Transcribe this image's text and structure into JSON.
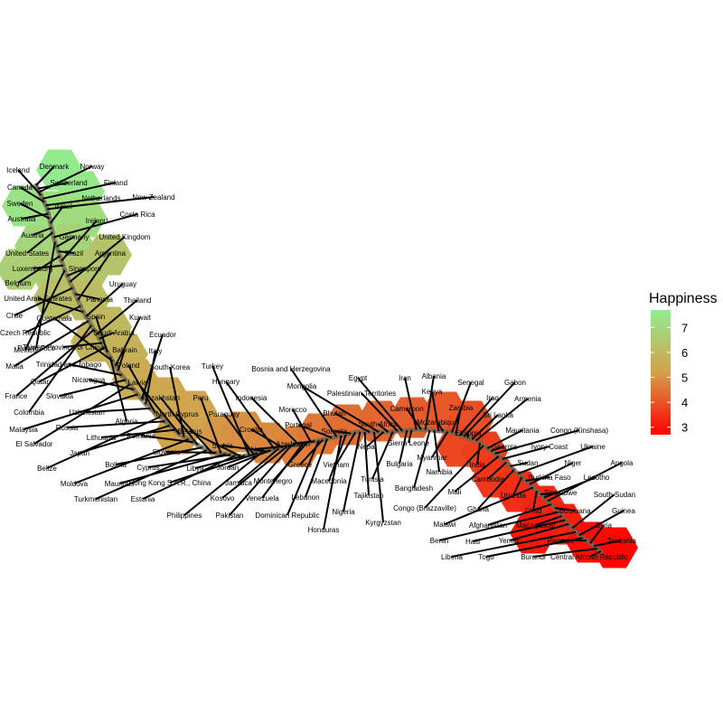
{
  "chart_data": {
    "type": "scatter",
    "title": "",
    "legend": {
      "title": "Happiness",
      "ticks": [
        3,
        4,
        5,
        6,
        7
      ],
      "range": [
        2.7,
        7.7
      ],
      "placement": "right"
    },
    "colors": {
      "low": "#ff0000",
      "mid": "#d4a04a",
      "high": "#90ee90"
    },
    "countries": [
      {
        "name": "Denmark",
        "happiness": 7.53
      },
      {
        "name": "Norway",
        "happiness": 7.5
      },
      {
        "name": "Iceland",
        "happiness": 7.5
      },
      {
        "name": "Switzerland",
        "happiness": 7.51
      },
      {
        "name": "Finland",
        "happiness": 7.41
      },
      {
        "name": "Canada",
        "happiness": 7.4
      },
      {
        "name": "Netherlands",
        "happiness": 7.34
      },
      {
        "name": "New Zealand",
        "happiness": 7.33
      },
      {
        "name": "Australia",
        "happiness": 7.31
      },
      {
        "name": "Sweden",
        "happiness": 7.29
      },
      {
        "name": "Israel",
        "happiness": 7.27
      },
      {
        "name": "Austria",
        "happiness": 7.12
      },
      {
        "name": "United States",
        "happiness": 7.1
      },
      {
        "name": "Costa Rica",
        "happiness": 7.09
      },
      {
        "name": "Puerto Rico",
        "happiness": 7.04
      },
      {
        "name": "Germany",
        "happiness": 6.99
      },
      {
        "name": "Brazil",
        "happiness": 6.95
      },
      {
        "name": "Belgium",
        "happiness": 6.93
      },
      {
        "name": "Ireland",
        "happiness": 6.91
      },
      {
        "name": "Luxembourg",
        "happiness": 6.87
      },
      {
        "name": "Mexico",
        "happiness": 6.78
      },
      {
        "name": "Singapore",
        "happiness": 6.74
      },
      {
        "name": "United Kingdom",
        "happiness": 6.73
      },
      {
        "name": "Chile",
        "happiness": 6.71
      },
      {
        "name": "Panama",
        "happiness": 6.7
      },
      {
        "name": "Argentina",
        "happiness": 6.65
      },
      {
        "name": "Czech Republic",
        "happiness": 6.6
      },
      {
        "name": "United Arab Emirates",
        "happiness": 6.57
      },
      {
        "name": "Uruguay",
        "happiness": 6.55
      },
      {
        "name": "Malta",
        "happiness": 6.49
      },
      {
        "name": "Colombia",
        "happiness": 6.48
      },
      {
        "name": "France",
        "happiness": 6.47
      },
      {
        "name": "Thailand",
        "happiness": 6.47
      },
      {
        "name": "Saudi Arabia",
        "happiness": 6.38
      },
      {
        "name": "Taiwan Province of China",
        "happiness": 6.38
      },
      {
        "name": "Qatar",
        "happiness": 6.37
      },
      {
        "name": "Spain",
        "happiness": 6.36
      },
      {
        "name": "Algeria",
        "happiness": 6.36
      },
      {
        "name": "Guatemala",
        "happiness": 6.32
      },
      {
        "name": "Kuwait",
        "happiness": 6.24
      },
      {
        "name": "Bahrain",
        "happiness": 6.22
      },
      {
        "name": "Trinidad and Tobago",
        "happiness": 6.17
      },
      {
        "name": "Italy",
        "happiness": 5.98
      },
      {
        "name": "Slovakia",
        "happiness": 6.08
      },
      {
        "name": "El Salvador",
        "happiness": 6.07
      },
      {
        "name": "Malaysia",
        "happiness": 6.06
      },
      {
        "name": "Nicaragua",
        "happiness": 6.07
      },
      {
        "name": "Uzbekistan",
        "happiness": 5.97
      },
      {
        "name": "Poland",
        "happiness": 5.97
      },
      {
        "name": "Japan",
        "happiness": 5.92
      },
      {
        "name": "Ecuador",
        "happiness": 6.01
      },
      {
        "name": "Belize",
        "happiness": 5.96
      },
      {
        "name": "South Korea",
        "happiness": 5.84
      },
      {
        "name": "Kazakhstan",
        "happiness": 5.82
      },
      {
        "name": "Moldova",
        "happiness": 5.84
      },
      {
        "name": "Latvia",
        "happiness": 5.85
      },
      {
        "name": "Russia",
        "happiness": 5.96
      },
      {
        "name": "Lithuania",
        "happiness": 5.9
      },
      {
        "name": "Bolivia",
        "happiness": 5.82
      },
      {
        "name": "Romania",
        "happiness": 5.83
      },
      {
        "name": "Turkmenistan",
        "happiness": 5.82
      },
      {
        "name": "Cyprus",
        "happiness": 5.62
      },
      {
        "name": "Mauritius",
        "happiness": 5.63
      },
      {
        "name": "Hong Kong S.A.R., China",
        "happiness": 5.47
      },
      {
        "name": "Estonia",
        "happiness": 5.61
      },
      {
        "name": "North Cyprus",
        "happiness": 5.81
      },
      {
        "name": "Slovenia",
        "happiness": 5.76
      },
      {
        "name": "Belarus",
        "happiness": 5.57
      },
      {
        "name": "Peru",
        "happiness": 5.72
      },
      {
        "name": "Libya",
        "happiness": 5.52
      },
      {
        "name": "Turkey",
        "happiness": 5.5
      },
      {
        "name": "Hungary",
        "happiness": 5.32
      },
      {
        "name": "Paraguay",
        "happiness": 5.49
      },
      {
        "name": "Serbia",
        "happiness": 5.4
      },
      {
        "name": "Jordan",
        "happiness": 5.34
      },
      {
        "name": "Jamaica",
        "happiness": 5.31
      },
      {
        "name": "Philippines",
        "happiness": 5.43
      },
      {
        "name": "Kosovo",
        "happiness": 5.28
      },
      {
        "name": "Pakistan",
        "happiness": 5.27
      },
      {
        "name": "Indonesia",
        "happiness": 5.26
      },
      {
        "name": "Croatia",
        "happiness": 5.29
      },
      {
        "name": "China",
        "happiness": 5.27
      },
      {
        "name": "Venezuela",
        "happiness": 5.25
      },
      {
        "name": "Montenegro",
        "happiness": 5.24
      },
      {
        "name": "Bosnia and Herzegovina",
        "happiness": 5.18
      },
      {
        "name": "Morocco",
        "happiness": 5.23
      },
      {
        "name": "Azerbaijan",
        "happiness": 5.23
      },
      {
        "name": "Mongolia",
        "happiness": 4.96
      },
      {
        "name": "Portugal",
        "happiness": 5.2
      },
      {
        "name": "Dominican Republic",
        "happiness": 5.23
      },
      {
        "name": "Greece",
        "happiness": 5.23
      },
      {
        "name": "Lebanon",
        "happiness": 5.23
      },
      {
        "name": "Vietnam",
        "happiness": 5.07
      },
      {
        "name": "Somalia",
        "happiness": 5.15
      },
      {
        "name": "Honduras",
        "happiness": 5.18
      },
      {
        "name": "Macedonia",
        "happiness": 5.18
      },
      {
        "name": "Bhutan",
        "happiness": 5.01
      },
      {
        "name": "Nigeria",
        "happiness": 5.07
      },
      {
        "name": "Palestinian Territories",
        "happiness": 4.78
      },
      {
        "name": "Tunisia",
        "happiness": 4.81
      },
      {
        "name": "Tajikistan",
        "happiness": 5.04
      },
      {
        "name": "Kyrgyzstan",
        "happiness": 5.0
      },
      {
        "name": "Egypt",
        "happiness": 4.73
      },
      {
        "name": "Nepal",
        "happiness": 4.96
      },
      {
        "name": "South Africa",
        "happiness": 4.83
      },
      {
        "name": "Bulgaria",
        "happiness": 4.71
      },
      {
        "name": "Iran",
        "happiness": 4.69
      },
      {
        "name": "Sierra Leone",
        "happiness": 4.71
      },
      {
        "name": "Cameroon",
        "happiness": 4.69
      },
      {
        "name": "Albania",
        "happiness": 4.64
      },
      {
        "name": "Kenya",
        "happiness": 4.55
      },
      {
        "name": "Bangladesh",
        "happiness": 4.61
      },
      {
        "name": "Mozambique",
        "happiness": 4.55
      },
      {
        "name": "Myanmar",
        "happiness": 4.55
      },
      {
        "name": "Namibia",
        "happiness": 4.57
      },
      {
        "name": "Congo (Brazzaville)",
        "happiness": 4.29
      },
      {
        "name": "Senegal",
        "happiness": 4.54
      },
      {
        "name": "Zambia",
        "happiness": 4.51
      },
      {
        "name": "Gabon",
        "happiness": 4.47
      },
      {
        "name": "Iraq",
        "happiness": 4.5
      },
      {
        "name": "Sri Lanka",
        "happiness": 4.44
      },
      {
        "name": "Armenia",
        "happiness": 4.38
      },
      {
        "name": "Ethiopia",
        "happiness": 4.46
      },
      {
        "name": "India",
        "happiness": 4.32
      },
      {
        "name": "Mauritania",
        "happiness": 4.29
      },
      {
        "name": "Congo (Kinshasa)",
        "happiness": 4.28
      },
      {
        "name": "Georgia",
        "happiness": 4.29
      },
      {
        "name": "Mali",
        "happiness": 4.19
      },
      {
        "name": "Ivory Coast",
        "happiness": 4.18
      },
      {
        "name": "Cambodia",
        "happiness": 4.17
      },
      {
        "name": "Sudan",
        "happiness": 4.14
      },
      {
        "name": "Ghana",
        "happiness": 4.12
      },
      {
        "name": "Ukraine",
        "happiness": 4.1
      },
      {
        "name": "Uganda",
        "happiness": 4.08
      },
      {
        "name": "Burkina Faso",
        "happiness": 4.03
      },
      {
        "name": "Niger",
        "happiness": 4.03
      },
      {
        "name": "Malawi",
        "happiness": 3.97
      },
      {
        "name": "Chad",
        "happiness": 3.94
      },
      {
        "name": "Zimbabwe",
        "happiness": 3.88
      },
      {
        "name": "Lesotho",
        "happiness": 3.81
      },
      {
        "name": "Angola",
        "happiness": 3.8
      },
      {
        "name": "Afghanistan",
        "happiness": 3.79
      },
      {
        "name": "Botswana",
        "happiness": 3.77
      },
      {
        "name": "Benin",
        "happiness": 3.66
      },
      {
        "name": "Madagascar",
        "happiness": 3.64
      },
      {
        "name": "Haiti",
        "happiness": 3.6
      },
      {
        "name": "Yemen",
        "happiness": 3.59
      },
      {
        "name": "South Sudan",
        "happiness": 3.59
      },
      {
        "name": "Liberia",
        "happiness": 3.53
      },
      {
        "name": "Guinea",
        "happiness": 3.51
      },
      {
        "name": "Togo",
        "happiness": 3.5
      },
      {
        "name": "Rwanda",
        "happiness": 3.47
      },
      {
        "name": "Syria",
        "happiness": 3.46
      },
      {
        "name": "Tanzania",
        "happiness": 3.35
      },
      {
        "name": "Burundi",
        "happiness": 2.91
      },
      {
        "name": "Central African Republic",
        "happiness": 2.69
      }
    ]
  }
}
